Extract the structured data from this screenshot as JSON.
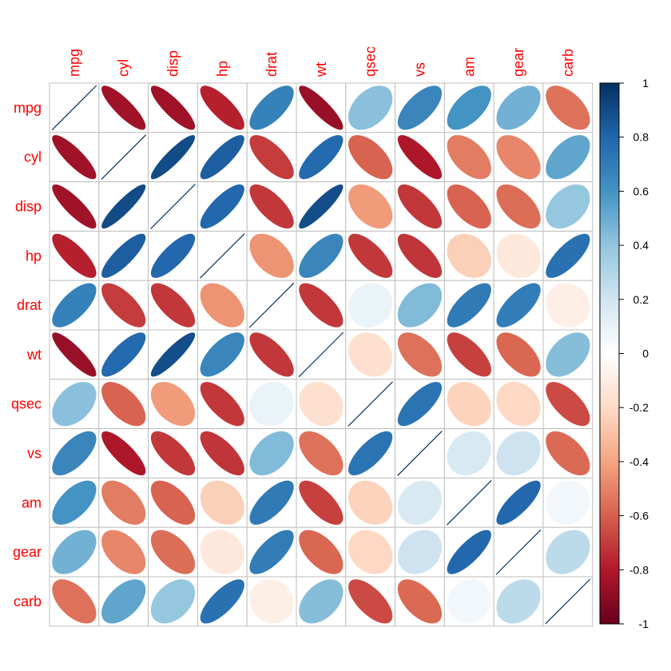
{
  "chart_data": {
    "type": "heatmap",
    "subtype": "correlation-ellipse-matrix",
    "variables": [
      "mpg",
      "cyl",
      "disp",
      "hp",
      "drat",
      "wt",
      "qsec",
      "vs",
      "am",
      "gear",
      "carb"
    ],
    "matrix": [
      [
        1,
        -0.85,
        -0.85,
        -0.78,
        0.68,
        -0.87,
        0.42,
        0.66,
        0.6,
        0.48,
        -0.55
      ],
      [
        -0.85,
        1,
        0.9,
        0.83,
        -0.7,
        0.78,
        -0.59,
        -0.81,
        -0.52,
        -0.49,
        0.53
      ],
      [
        -0.85,
        0.9,
        1,
        0.79,
        -0.71,
        0.89,
        -0.43,
        -0.71,
        -0.59,
        -0.56,
        0.39
      ],
      [
        -0.78,
        0.83,
        0.79,
        1,
        -0.45,
        0.66,
        -0.71,
        -0.72,
        -0.24,
        -0.13,
        0.75
      ],
      [
        0.68,
        -0.7,
        -0.71,
        -0.45,
        1,
        -0.71,
        0.09,
        0.44,
        0.71,
        0.7,
        -0.09
      ],
      [
        -0.87,
        0.78,
        0.89,
        0.66,
        -0.71,
        1,
        -0.17,
        -0.55,
        -0.69,
        -0.58,
        0.43
      ],
      [
        0.42,
        -0.59,
        -0.43,
        -0.71,
        0.09,
        -0.17,
        1,
        0.74,
        -0.23,
        -0.21,
        -0.66
      ],
      [
        0.66,
        -0.81,
        -0.71,
        -0.72,
        0.44,
        -0.55,
        0.74,
        1,
        0.17,
        0.21,
        -0.57
      ],
      [
        0.6,
        -0.52,
        -0.59,
        -0.24,
        0.71,
        -0.69,
        -0.23,
        0.17,
        1,
        0.79,
        0.06
      ],
      [
        0.48,
        -0.49,
        -0.56,
        -0.13,
        0.7,
        -0.58,
        -0.21,
        0.21,
        0.79,
        1,
        0.27
      ],
      [
        -0.55,
        0.53,
        0.39,
        0.75,
        -0.09,
        0.43,
        -0.66,
        -0.57,
        0.06,
        0.27,
        1
      ]
    ],
    "colorbar": {
      "min": -1,
      "max": 1,
      "tick_labels": [
        "1",
        "0.8",
        "0.6",
        "0.4",
        "0.2",
        "0",
        "-0.2",
        "-0.4",
        "-0.6",
        "-0.8",
        "-1"
      ],
      "tick_values": [
        1,
        0.8,
        0.6,
        0.4,
        0.2,
        0,
        -0.2,
        -0.4,
        -0.6,
        -0.8,
        -1
      ]
    },
    "palette": [
      "#67001F",
      "#B2182B",
      "#D6604D",
      "#F4A582",
      "#FDDBC7",
      "#FFFFFF",
      "#D1E5F0",
      "#92C5DE",
      "#4393C3",
      "#2166AC",
      "#053061"
    ],
    "label_color": "#FF0000",
    "grid_color": "#BEBEBE"
  }
}
